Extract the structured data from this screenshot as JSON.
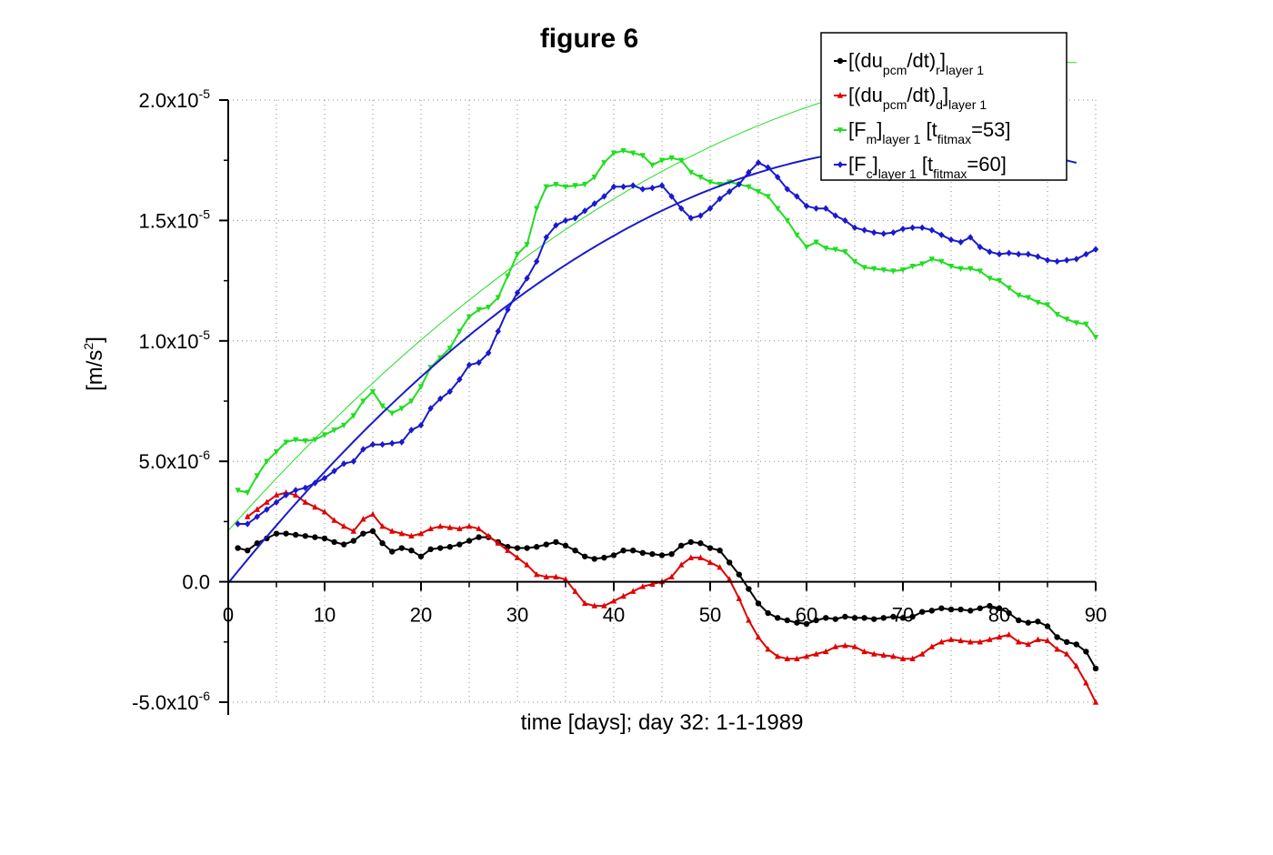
{
  "chart_data": {
    "type": "line",
    "title": "figure 6",
    "xlabel": "time [days]; day 32: 1-1-1989",
    "ylabel": {
      "main": "[m/s",
      "sup": "2",
      "close": "]"
    },
    "xlim": [
      0,
      90
    ],
    "ylim": [
      -5e-06,
      2e-05
    ],
    "xticks": [
      {
        "value": 0,
        "label": "0"
      },
      {
        "value": 10,
        "label": "10"
      },
      {
        "value": 20,
        "label": "20"
      },
      {
        "value": 30,
        "label": "30"
      },
      {
        "value": 40,
        "label": "40"
      },
      {
        "value": 50,
        "label": "50"
      },
      {
        "value": 60,
        "label": "60"
      },
      {
        "value": 70,
        "label": "70"
      },
      {
        "value": 80,
        "label": "80"
      },
      {
        "value": 90,
        "label": "90"
      }
    ],
    "yticks": [
      {
        "value": -5e-06,
        "mant": "-5.0x10",
        "exp": "-6"
      },
      {
        "value": 0,
        "mant": "0.0",
        "exp": ""
      },
      {
        "value": 5e-06,
        "mant": "5.0x10",
        "exp": "-6"
      },
      {
        "value": 1e-05,
        "mant": "1.0x10",
        "exp": "-5"
      },
      {
        "value": 1.5e-05,
        "mant": "1.5x10",
        "exp": "-5"
      },
      {
        "value": 2e-05,
        "mant": "2.0x10",
        "exp": "-5"
      }
    ],
    "grid": true,
    "legend_position": "top-right",
    "series": [
      {
        "legend": [
          {
            "t": "[(du"
          },
          {
            "t": "pcm",
            "sub": true
          },
          {
            "t": "/dt)"
          },
          {
            "t": "r",
            "sub": true
          },
          {
            "t": "]"
          },
          {
            "t": "layer 1",
            "sub": true
          }
        ],
        "color": "#000000",
        "marker": "circle",
        "x": [
          1,
          2,
          3,
          4,
          5,
          6,
          7,
          8,
          9,
          10,
          11,
          12,
          13,
          14,
          15,
          16,
          17,
          18,
          19,
          20,
          21,
          22,
          23,
          24,
          25,
          26,
          27,
          28,
          29,
          30,
          31,
          32,
          33,
          34,
          35,
          36,
          37,
          38,
          39,
          40,
          41,
          42,
          43,
          44,
          45,
          46,
          47,
          48,
          49,
          50,
          51,
          52,
          53,
          54,
          55,
          56,
          57,
          58,
          59,
          60,
          61,
          62,
          63,
          64,
          65,
          66,
          67,
          68,
          69,
          70,
          71,
          72,
          73,
          74,
          75,
          76,
          77,
          78,
          79,
          80,
          81,
          82,
          83,
          84,
          85,
          86,
          87,
          88,
          89,
          90
        ],
        "y": [
          1.4e-06,
          1.3e-06,
          1.6e-06,
          1.8e-06,
          2e-06,
          2e-06,
          1.95e-06,
          1.9e-06,
          1.85e-06,
          1.8e-06,
          1.65e-06,
          1.55e-06,
          1.7e-06,
          2e-06,
          2.1e-06,
          1.6e-06,
          1.25e-06,
          1.4e-06,
          1.3e-06,
          1.05e-06,
          1.35e-06,
          1.4e-06,
          1.45e-06,
          1.55e-06,
          1.7e-06,
          1.85e-06,
          1.85e-06,
          1.65e-06,
          1.45e-06,
          1.4e-06,
          1.4e-06,
          1.45e-06,
          1.55e-06,
          1.65e-06,
          1.5e-06,
          1.3e-06,
          1.05e-06,
          9.5e-07,
          1e-06,
          1.1e-06,
          1.3e-06,
          1.3e-06,
          1.2e-06,
          1.15e-06,
          1.1e-06,
          1.15e-06,
          1.5e-06,
          1.65e-06,
          1.6e-06,
          1.4e-06,
          1.3e-06,
          8e-07,
          3e-07,
          -3e-07,
          -9e-07,
          -1.3e-06,
          -1.5e-06,
          -1.6e-06,
          -1.7e-06,
          -1.75e-06,
          -1.6e-06,
          -1.5e-06,
          -1.55e-06,
          -1.45e-06,
          -1.5e-06,
          -1.5e-06,
          -1.55e-06,
          -1.5e-06,
          -1.45e-06,
          -1.5e-06,
          -1.45e-06,
          -1.25e-06,
          -1.2e-06,
          -1.1e-06,
          -1.15e-06,
          -1.15e-06,
          -1.2e-06,
          -1.1e-06,
          -1e-06,
          -1.1e-06,
          -1.3e-06,
          -1.6e-06,
          -1.7e-06,
          -1.65e-06,
          -1.85e-06,
          -2.3e-06,
          -2.5e-06,
          -2.6e-06,
          -2.9e-06,
          -3.6e-06
        ]
      },
      {
        "legend": [
          {
            "t": "[(du"
          },
          {
            "t": "pcm",
            "sub": true
          },
          {
            "t": "/dt)"
          },
          {
            "t": "d",
            "sub": true
          },
          {
            "t": "]"
          },
          {
            "t": "layer 1",
            "sub": true
          }
        ],
        "color": "#e00000",
        "marker": "triangle-up",
        "x": [
          2,
          3,
          4,
          5,
          6,
          7,
          8,
          9,
          10,
          11,
          12,
          13,
          14,
          15,
          16,
          17,
          18,
          19,
          20,
          21,
          22,
          23,
          24,
          25,
          26,
          27,
          28,
          29,
          30,
          31,
          32,
          33,
          34,
          35,
          36,
          37,
          38,
          39,
          40,
          41,
          42,
          43,
          44,
          45,
          46,
          47,
          48,
          49,
          50,
          51,
          52,
          53,
          54,
          55,
          56,
          57,
          58,
          59,
          60,
          61,
          62,
          63,
          64,
          65,
          66,
          67,
          68,
          69,
          70,
          71,
          72,
          73,
          74,
          75,
          76,
          77,
          78,
          79,
          80,
          81,
          82,
          83,
          84,
          85,
          86,
          87,
          88,
          89,
          90
        ],
        "y": [
          2.7e-06,
          3e-06,
          3.3e-06,
          3.6e-06,
          3.7e-06,
          3.6e-06,
          3.3e-06,
          3.1e-06,
          2.9e-06,
          2.55e-06,
          2.3e-06,
          2.1e-06,
          2.6e-06,
          2.8e-06,
          2.3e-06,
          2.1e-06,
          2e-06,
          1.9e-06,
          2e-06,
          2.2e-06,
          2.3e-06,
          2.25e-06,
          2.2e-06,
          2.3e-06,
          2.2e-06,
          1.9e-06,
          1.6e-06,
          1.3e-06,
          1e-06,
          7e-07,
          3e-07,
          2e-07,
          2e-07,
          1e-07,
          -4e-07,
          -9e-07,
          -1e-06,
          -1e-06,
          -8e-07,
          -6e-07,
          -4e-07,
          -2e-07,
          -1e-07,
          0.0,
          2e-07,
          7e-07,
          1e-06,
          1e-06,
          8e-07,
          6e-07,
          1e-07,
          -7e-07,
          -1.6e-06,
          -2.3e-06,
          -2.8e-06,
          -3.1e-06,
          -3.2e-06,
          -3.2e-06,
          -3.1e-06,
          -3e-06,
          -2.9e-06,
          -2.7e-06,
          -2.65e-06,
          -2.7e-06,
          -2.9e-06,
          -3e-06,
          -3.05e-06,
          -3.1e-06,
          -3.2e-06,
          -3.2e-06,
          -3e-06,
          -2.7e-06,
          -2.5e-06,
          -2.4e-06,
          -2.45e-06,
          -2.5e-06,
          -2.5e-06,
          -2.4e-06,
          -2.3e-06,
          -2.2e-06,
          -2.5e-06,
          -2.6e-06,
          -2.4e-06,
          -2.45e-06,
          -2.8e-06,
          -3e-06,
          -3.5e-06,
          -4.2e-06,
          -5e-06
        ]
      },
      {
        "legend": [
          {
            "t": "[F"
          },
          {
            "t": "m",
            "sub": true
          },
          {
            "t": "]"
          },
          {
            "t": "layer 1",
            "sub": true
          },
          {
            "t": " [t"
          },
          {
            "t": "fitmax",
            "sub": true
          },
          {
            "t": "=53]"
          }
        ],
        "color": "#22dd22",
        "marker": "triangle-down",
        "x": [
          1,
          2,
          3,
          4,
          5,
          6,
          7,
          8,
          9,
          10,
          11,
          12,
          13,
          14,
          15,
          16,
          17,
          18,
          19,
          20,
          21,
          22,
          23,
          24,
          25,
          26,
          27,
          28,
          29,
          30,
          31,
          32,
          33,
          34,
          35,
          36,
          37,
          38,
          39,
          40,
          41,
          42,
          43,
          44,
          45,
          46,
          47,
          48,
          49,
          50,
          51,
          52,
          53,
          54,
          55,
          56,
          57,
          58,
          59,
          60,
          61,
          62,
          63,
          64,
          65,
          66,
          67,
          68,
          69,
          70,
          71,
          72,
          73,
          74,
          75,
          76,
          77,
          78,
          79,
          80,
          81,
          82,
          83,
          84,
          85,
          86,
          87,
          88,
          89,
          90
        ],
        "y": [
          3.8e-06,
          3.7e-06,
          4.4e-06,
          5e-06,
          5.4e-06,
          5.8e-06,
          5.9e-06,
          5.85e-06,
          5.9e-06,
          6.1e-06,
          6.3e-06,
          6.5e-06,
          6.9e-06,
          7.5e-06,
          7.9e-06,
          7.3e-06,
          7e-06,
          7.2e-06,
          7.5e-06,
          8.1e-06,
          8.9e-06,
          9.3e-06,
          9.7e-06,
          1.04e-05,
          1.1e-05,
          1.13e-05,
          1.14e-05,
          1.18e-05,
          1.27e-05,
          1.36e-05,
          1.4e-05,
          1.55e-05,
          1.64e-05,
          1.65e-05,
          1.64e-05,
          1.645e-05,
          1.65e-05,
          1.68e-05,
          1.74e-05,
          1.78e-05,
          1.79e-05,
          1.78e-05,
          1.77e-05,
          1.73e-05,
          1.75e-05,
          1.76e-05,
          1.75e-05,
          1.7e-05,
          1.68e-05,
          1.66e-05,
          1.65e-05,
          1.66e-05,
          1.65e-05,
          1.64e-05,
          1.62e-05,
          1.6e-05,
          1.55e-05,
          1.5e-05,
          1.44e-05,
          1.39e-05,
          1.41e-05,
          1.385e-05,
          1.38e-05,
          1.37e-05,
          1.33e-05,
          1.305e-05,
          1.3e-05,
          1.295e-05,
          1.29e-05,
          1.295e-05,
          1.31e-05,
          1.32e-05,
          1.34e-05,
          1.33e-05,
          1.31e-05,
          1.3e-05,
          1.3e-05,
          1.29e-05,
          1.26e-05,
          1.25e-05,
          1.22e-05,
          1.19e-05,
          1.18e-05,
          1.16e-05,
          1.15e-05,
          1.11e-05,
          1.09e-05,
          1.075e-05,
          1.07e-05,
          1.015e-05
        ]
      },
      {
        "legend": [
          {
            "t": "[F"
          },
          {
            "t": "c",
            "sub": true
          },
          {
            "t": "]"
          },
          {
            "t": "layer 1",
            "sub": true
          },
          {
            "t": " [t"
          },
          {
            "t": "fitmax",
            "sub": true
          },
          {
            "t": "=60]"
          }
        ],
        "color": "#1a1acc",
        "marker": "diamond",
        "x": [
          1,
          2,
          3,
          4,
          5,
          6,
          7,
          8,
          9,
          10,
          11,
          12,
          13,
          14,
          15,
          16,
          17,
          18,
          19,
          20,
          21,
          22,
          23,
          24,
          25,
          26,
          27,
          28,
          29,
          30,
          31,
          32,
          33,
          34,
          35,
          36,
          37,
          38,
          39,
          40,
          41,
          42,
          43,
          44,
          45,
          46,
          47,
          48,
          49,
          50,
          51,
          52,
          53,
          54,
          55,
          56,
          57,
          58,
          59,
          60,
          61,
          62,
          63,
          64,
          65,
          66,
          67,
          68,
          69,
          70,
          71,
          72,
          73,
          74,
          75,
          76,
          77,
          78,
          79,
          80,
          81,
          82,
          83,
          84,
          85,
          86,
          87,
          88,
          89,
          90
        ],
        "y": [
          2.4e-06,
          2.4e-06,
          2.7e-06,
          3e-06,
          3.3e-06,
          3.6e-06,
          3.8e-06,
          3.9e-06,
          4.1e-06,
          4.3e-06,
          4.6e-06,
          4.9e-06,
          5e-06,
          5.5e-06,
          5.7e-06,
          5.7e-06,
          5.75e-06,
          5.8e-06,
          6.3e-06,
          6.5e-06,
          7.2e-06,
          7.6e-06,
          7.9e-06,
          8.4e-06,
          9e-06,
          9.1e-06,
          9.5e-06,
          1.04e-05,
          1.13e-05,
          1.2e-05,
          1.26e-05,
          1.33e-05,
          1.43e-05,
          1.48e-05,
          1.5e-05,
          1.51e-05,
          1.54e-05,
          1.57e-05,
          1.6e-05,
          1.64e-05,
          1.64e-05,
          1.645e-05,
          1.63e-05,
          1.635e-05,
          1.645e-05,
          1.6e-05,
          1.55e-05,
          1.51e-05,
          1.52e-05,
          1.55e-05,
          1.59e-05,
          1.62e-05,
          1.65e-05,
          1.7e-05,
          1.74e-05,
          1.72e-05,
          1.68e-05,
          1.63e-05,
          1.6e-05,
          1.56e-05,
          1.55e-05,
          1.55e-05,
          1.52e-05,
          1.5e-05,
          1.47e-05,
          1.46e-05,
          1.45e-05,
          1.445e-05,
          1.45e-05,
          1.465e-05,
          1.47e-05,
          1.47e-05,
          1.46e-05,
          1.44e-05,
          1.42e-05,
          1.41e-05,
          1.43e-05,
          1.39e-05,
          1.37e-05,
          1.36e-05,
          1.365e-05,
          1.36e-05,
          1.36e-05,
          1.35e-05,
          1.335e-05,
          1.33e-05,
          1.335e-05,
          1.34e-05,
          1.36e-05,
          1.38e-05
        ]
      }
    ]
  }
}
